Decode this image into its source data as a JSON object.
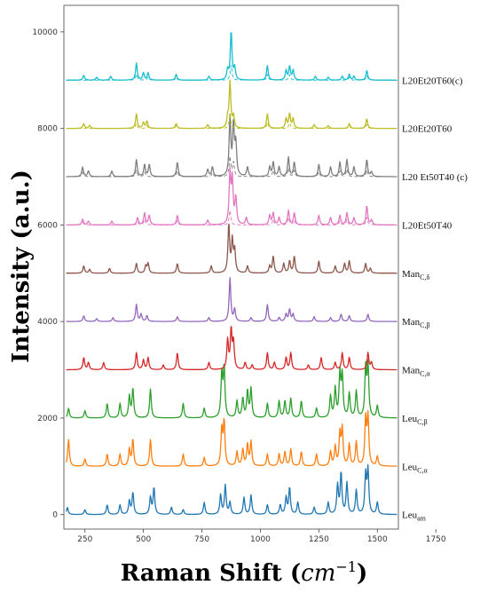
{
  "chart_data": {
    "type": "line",
    "xlabel_main": "Raman Shift (",
    "xlabel_unit": "cm",
    "xlabel_exp": "−1",
    "xlabel_close": ")",
    "ylabel": "Intensity (a.u.)",
    "xlim": [
      160,
      1590
    ],
    "ylim": [
      -300,
      10550
    ],
    "x_ticks": [
      250,
      500,
      750,
      1000,
      1250,
      1500,
      1750
    ],
    "y_ticks": [
      0,
      2000,
      4000,
      6000,
      8000,
      10000
    ],
    "grid": false,
    "series": [
      {
        "name": "Leu",
        "sub": "am",
        "baseline": 0,
        "color": "#1f77b4",
        "dashed": false,
        "peaks": [
          [
            175,
            150
          ],
          [
            250,
            100
          ],
          [
            345,
            200
          ],
          [
            400,
            200
          ],
          [
            440,
            280
          ],
          [
            455,
            450
          ],
          [
            530,
            350
          ],
          [
            545,
            550
          ],
          [
            620,
            150
          ],
          [
            670,
            100
          ],
          [
            760,
            250
          ],
          [
            830,
            400
          ],
          [
            850,
            600
          ],
          [
            870,
            250
          ],
          [
            930,
            350
          ],
          [
            960,
            400
          ],
          [
            1030,
            200
          ],
          [
            1085,
            200
          ],
          [
            1110,
            350
          ],
          [
            1125,
            550
          ],
          [
            1160,
            250
          ],
          [
            1230,
            150
          ],
          [
            1290,
            250
          ],
          [
            1330,
            600
          ],
          [
            1345,
            850
          ],
          [
            1370,
            650
          ],
          [
            1410,
            500
          ],
          [
            1450,
            800
          ],
          [
            1460,
            900
          ],
          [
            1500,
            250
          ]
        ]
      },
      {
        "name": "Leu",
        "sub": "C,α",
        "baseline": 1000,
        "color": "#ff7f0e",
        "dashed": false,
        "peaks": [
          [
            180,
            550
          ],
          [
            250,
            150
          ],
          [
            345,
            250
          ],
          [
            400,
            250
          ],
          [
            440,
            350
          ],
          [
            455,
            550
          ],
          [
            530,
            550
          ],
          [
            670,
            250
          ],
          [
            760,
            180
          ],
          [
            835,
            750
          ],
          [
            845,
            900
          ],
          [
            900,
            300
          ],
          [
            925,
            350
          ],
          [
            945,
            450
          ],
          [
            960,
            500
          ],
          [
            1030,
            250
          ],
          [
            1080,
            250
          ],
          [
            1105,
            300
          ],
          [
            1130,
            350
          ],
          [
            1175,
            300
          ],
          [
            1240,
            250
          ],
          [
            1300,
            300
          ],
          [
            1320,
            400
          ],
          [
            1340,
            650
          ],
          [
            1350,
            750
          ],
          [
            1380,
            450
          ],
          [
            1410,
            500
          ],
          [
            1450,
            950
          ],
          [
            1460,
            1000
          ],
          [
            1500,
            200
          ]
        ]
      },
      {
        "name": "Leu",
        "sub": "C,β",
        "baseline": 2000,
        "color": "#2ca02c",
        "dashed": false,
        "peaks": [
          [
            180,
            200
          ],
          [
            250,
            150
          ],
          [
            345,
            300
          ],
          [
            400,
            300
          ],
          [
            440,
            450
          ],
          [
            455,
            600
          ],
          [
            530,
            600
          ],
          [
            670,
            300
          ],
          [
            760,
            200
          ],
          [
            835,
            900
          ],
          [
            845,
            1000
          ],
          [
            900,
            350
          ],
          [
            925,
            400
          ],
          [
            945,
            550
          ],
          [
            960,
            600
          ],
          [
            1030,
            300
          ],
          [
            1080,
            350
          ],
          [
            1105,
            350
          ],
          [
            1130,
            400
          ],
          [
            1175,
            350
          ],
          [
            1240,
            200
          ],
          [
            1300,
            450
          ],
          [
            1320,
            600
          ],
          [
            1340,
            900
          ],
          [
            1350,
            850
          ],
          [
            1380,
            500
          ],
          [
            1410,
            550
          ],
          [
            1450,
            1000
          ],
          [
            1460,
            1050
          ],
          [
            1500,
            250
          ]
        ]
      },
      {
        "name": "Man",
        "sub": "C,α",
        "baseline": 3000,
        "color": "#d62728",
        "dashed": false,
        "peaks": [
          [
            245,
            250
          ],
          [
            265,
            150
          ],
          [
            330,
            150
          ],
          [
            470,
            350
          ],
          [
            500,
            200
          ],
          [
            520,
            250
          ],
          [
            585,
            100
          ],
          [
            645,
            350
          ],
          [
            780,
            150
          ],
          [
            860,
            600
          ],
          [
            875,
            800
          ],
          [
            885,
            550
          ],
          [
            935,
            150
          ],
          [
            965,
            100
          ],
          [
            1030,
            350
          ],
          [
            1060,
            150
          ],
          [
            1110,
            250
          ],
          [
            1130,
            350
          ],
          [
            1205,
            100
          ],
          [
            1260,
            250
          ],
          [
            1320,
            150
          ],
          [
            1350,
            350
          ],
          [
            1380,
            250
          ],
          [
            1460,
            350
          ],
          [
            1475,
            150
          ]
        ]
      },
      {
        "name": "Man",
        "sub": "C,β",
        "baseline": 4000,
        "color": "#9467bd",
        "dashed": false,
        "peaks": [
          [
            245,
            120
          ],
          [
            300,
            60
          ],
          [
            370,
            80
          ],
          [
            470,
            350
          ],
          [
            490,
            150
          ],
          [
            515,
            120
          ],
          [
            645,
            100
          ],
          [
            780,
            80
          ],
          [
            870,
            900
          ],
          [
            890,
            250
          ],
          [
            960,
            80
          ],
          [
            1030,
            350
          ],
          [
            1080,
            80
          ],
          [
            1110,
            150
          ],
          [
            1125,
            250
          ],
          [
            1140,
            150
          ],
          [
            1230,
            100
          ],
          [
            1300,
            80
          ],
          [
            1345,
            150
          ],
          [
            1380,
            120
          ],
          [
            1460,
            150
          ]
        ]
      },
      {
        "name": "Man",
        "sub": "C,δ",
        "baseline": 5000,
        "color": "#8c564b",
        "dashed": false,
        "peaks": [
          [
            245,
            150
          ],
          [
            270,
            80
          ],
          [
            355,
            100
          ],
          [
            470,
            200
          ],
          [
            510,
            150
          ],
          [
            520,
            200
          ],
          [
            645,
            200
          ],
          [
            790,
            150
          ],
          [
            865,
            1000
          ],
          [
            880,
            650
          ],
          [
            890,
            450
          ],
          [
            945,
            150
          ],
          [
            1040,
            150
          ],
          [
            1055,
            350
          ],
          [
            1100,
            200
          ],
          [
            1125,
            250
          ],
          [
            1145,
            350
          ],
          [
            1250,
            250
          ],
          [
            1320,
            150
          ],
          [
            1360,
            200
          ],
          [
            1380,
            250
          ],
          [
            1450,
            200
          ],
          [
            1470,
            100
          ]
        ]
      },
      {
        "name": "L20Et50T40",
        "sub": "",
        "baseline": 6000,
        "color": "#e377c2",
        "dashed": false,
        "peaks": [
          [
            240,
            120
          ],
          [
            265,
            80
          ],
          [
            365,
            80
          ],
          [
            475,
            150
          ],
          [
            505,
            250
          ],
          [
            525,
            200
          ],
          [
            645,
            200
          ],
          [
            775,
            100
          ],
          [
            870,
            1050
          ],
          [
            880,
            900
          ],
          [
            895,
            550
          ],
          [
            940,
            150
          ],
          [
            1040,
            200
          ],
          [
            1055,
            250
          ],
          [
            1080,
            150
          ],
          [
            1120,
            300
          ],
          [
            1145,
            250
          ],
          [
            1250,
            200
          ],
          [
            1300,
            150
          ],
          [
            1340,
            200
          ],
          [
            1370,
            250
          ],
          [
            1400,
            150
          ],
          [
            1455,
            400
          ],
          [
            1475,
            100
          ]
        ]
      },
      {
        "name": "L20Et50T40",
        "sub": "",
        "baseline": 6000,
        "color": "#e377c2",
        "dashed": true,
        "peaks": [
          [
            240,
            60
          ],
          [
            475,
            60
          ],
          [
            505,
            120
          ],
          [
            645,
            90
          ],
          [
            870,
            300
          ],
          [
            1055,
            120
          ],
          [
            1120,
            150
          ],
          [
            1145,
            100
          ],
          [
            1340,
            80
          ],
          [
            1370,
            110
          ],
          [
            1455,
            160
          ]
        ]
      },
      {
        "name": "L20 Et50T40 (c)",
        "sub": "",
        "baseline": 7000,
        "color": "#7f7f7f",
        "dashed": false,
        "peaks": [
          [
            240,
            200
          ],
          [
            265,
            120
          ],
          [
            365,
            120
          ],
          [
            470,
            350
          ],
          [
            505,
            250
          ],
          [
            525,
            250
          ],
          [
            645,
            300
          ],
          [
            775,
            150
          ],
          [
            795,
            200
          ],
          [
            870,
            1200
          ],
          [
            885,
            1050
          ],
          [
            895,
            650
          ],
          [
            945,
            200
          ],
          [
            1040,
            200
          ],
          [
            1055,
            300
          ],
          [
            1080,
            200
          ],
          [
            1120,
            400
          ],
          [
            1145,
            300
          ],
          [
            1250,
            250
          ],
          [
            1300,
            200
          ],
          [
            1340,
            300
          ],
          [
            1370,
            350
          ],
          [
            1400,
            200
          ],
          [
            1455,
            350
          ],
          [
            1475,
            100
          ]
        ]
      },
      {
        "name": "L20 Et50T40 (c)",
        "sub": "",
        "baseline": 7000,
        "color": "#7f7f7f",
        "dashed": true,
        "peaks": [
          [
            240,
            90
          ],
          [
            470,
            130
          ],
          [
            505,
            100
          ],
          [
            645,
            120
          ],
          [
            795,
            80
          ],
          [
            870,
            400
          ],
          [
            885,
            300
          ],
          [
            1055,
            130
          ],
          [
            1120,
            170
          ],
          [
            1145,
            130
          ],
          [
            1250,
            100
          ],
          [
            1340,
            120
          ],
          [
            1370,
            150
          ],
          [
            1455,
            140
          ]
        ]
      },
      {
        "name": "L20Et20T60",
        "sub": "",
        "baseline": 8000,
        "color": "#bcbd22",
        "dashed": false,
        "peaks": [
          [
            245,
            100
          ],
          [
            270,
            60
          ],
          [
            470,
            300
          ],
          [
            500,
            120
          ],
          [
            515,
            150
          ],
          [
            640,
            100
          ],
          [
            775,
            80
          ],
          [
            860,
            200
          ],
          [
            870,
            950
          ],
          [
            885,
            250
          ],
          [
            1030,
            300
          ],
          [
            1110,
            200
          ],
          [
            1125,
            300
          ],
          [
            1140,
            200
          ],
          [
            1230,
            80
          ],
          [
            1290,
            60
          ],
          [
            1380,
            100
          ],
          [
            1455,
            200
          ]
        ]
      },
      {
        "name": "L20Et20T60",
        "sub": "",
        "baseline": 8000,
        "color": "#bcbd22",
        "dashed": true,
        "peaks": [
          [
            470,
            100
          ],
          [
            515,
            60
          ],
          [
            640,
            50
          ],
          [
            870,
            300
          ],
          [
            1030,
            120
          ],
          [
            1125,
            120
          ],
          [
            1380,
            50
          ],
          [
            1455,
            80
          ]
        ]
      },
      {
        "name": "L20Et20T60(c)",
        "sub": "",
        "baseline": 9000,
        "color": "#17becf",
        "dashed": false,
        "peaks": [
          [
            245,
            100
          ],
          [
            300,
            60
          ],
          [
            360,
            80
          ],
          [
            470,
            350
          ],
          [
            500,
            150
          ],
          [
            520,
            150
          ],
          [
            640,
            120
          ],
          [
            780,
            80
          ],
          [
            860,
            200
          ],
          [
            875,
            1000
          ],
          [
            890,
            250
          ],
          [
            1030,
            300
          ],
          [
            1110,
            200
          ],
          [
            1125,
            280
          ],
          [
            1140,
            200
          ],
          [
            1235,
            80
          ],
          [
            1290,
            60
          ],
          [
            1350,
            80
          ],
          [
            1380,
            120
          ],
          [
            1400,
            80
          ],
          [
            1455,
            200
          ]
        ]
      },
      {
        "name": "L20Et20T60(c)",
        "sub": "",
        "baseline": 9000,
        "color": "#17becf",
        "dashed": true,
        "peaks": [
          [
            470,
            120
          ],
          [
            520,
            60
          ],
          [
            640,
            60
          ],
          [
            875,
            320
          ],
          [
            1030,
            120
          ],
          [
            1125,
            120
          ],
          [
            1380,
            60
          ],
          [
            1455,
            90
          ]
        ]
      }
    ]
  }
}
